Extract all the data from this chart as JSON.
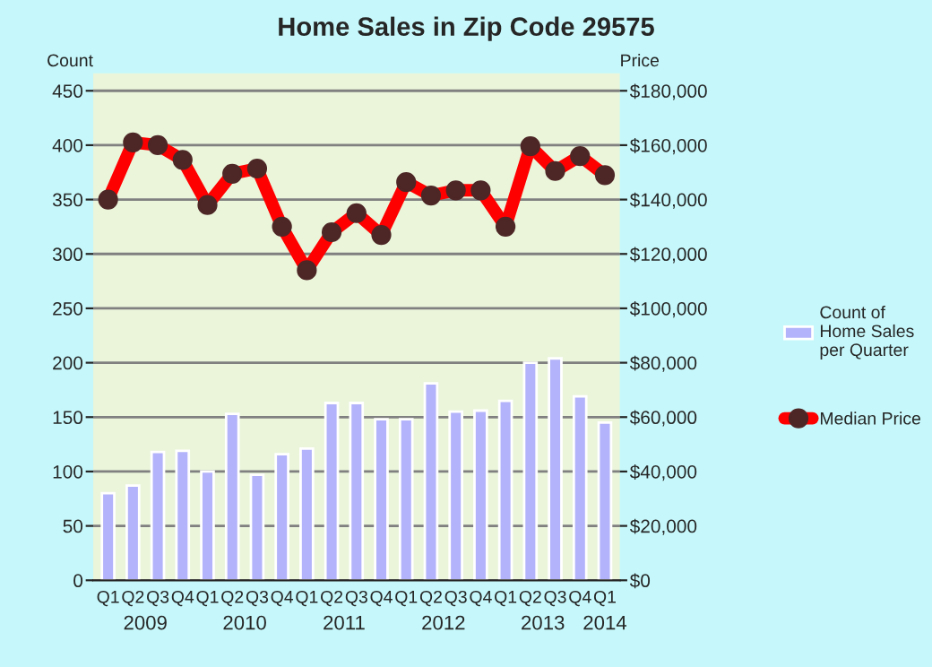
{
  "chart_data": {
    "type": "bar",
    "title": "Home Sales in Zip Code 29575",
    "ylabel": "Count",
    "y2label": "Price",
    "categories": [
      "Q1",
      "Q2",
      "Q3",
      "Q4",
      "Q1",
      "Q2",
      "Q3",
      "Q4",
      "Q1",
      "Q2",
      "Q3",
      "Q4",
      "Q1",
      "Q2",
      "Q3",
      "Q4",
      "Q1",
      "Q2",
      "Q3",
      "Q4",
      "Q1"
    ],
    "series": [
      {
        "name": "Count of\nHome Sales\nper Quarter",
        "color": "#b3b3fb",
        "values": [
          80,
          87,
          118,
          119,
          100,
          153,
          97,
          116,
          121,
          163,
          163,
          148,
          148,
          181,
          155,
          156,
          165,
          200,
          204,
          169,
          145
        ]
      },
      {
        "name": "Median Price",
        "type": "line",
        "axis": "y2",
        "color": "#ff0000",
        "values": [
          140000,
          161000,
          160000,
          154600,
          138000,
          149500,
          151400,
          130000,
          114000,
          128000,
          135000,
          127000,
          146400,
          141500,
          143400,
          143400,
          130000,
          159600,
          150500,
          156000,
          149000
        ]
      }
    ],
    "annotations": [
      "2009",
      "2010",
      "2011",
      "2012",
      "2013",
      "2014"
    ],
    "ylim": [
      0,
      466
    ],
    "yticks": [
      0,
      50,
      100,
      150,
      200,
      250,
      300,
      350,
      400,
      450
    ],
    "y2lim": [
      0,
      186400
    ],
    "y2ticks": [
      {
        "value": 0,
        "label": "$0"
      },
      {
        "value": 20000,
        "label": "$20,000"
      },
      {
        "value": 40000,
        "label": "$40,000"
      },
      {
        "value": 60000,
        "label": "$60,000"
      },
      {
        "value": 80000,
        "label": "$80,000"
      },
      {
        "value": 100000,
        "label": "$100,000"
      },
      {
        "value": 120000,
        "label": "$120,000"
      },
      {
        "value": 140000,
        "label": "$140,000"
      },
      {
        "value": 160000,
        "label": "$160,000"
      },
      {
        "value": 180000,
        "label": "$180,000"
      }
    ],
    "grid": "y",
    "legend": "right",
    "marker": "circle",
    "line_style": "solid"
  }
}
